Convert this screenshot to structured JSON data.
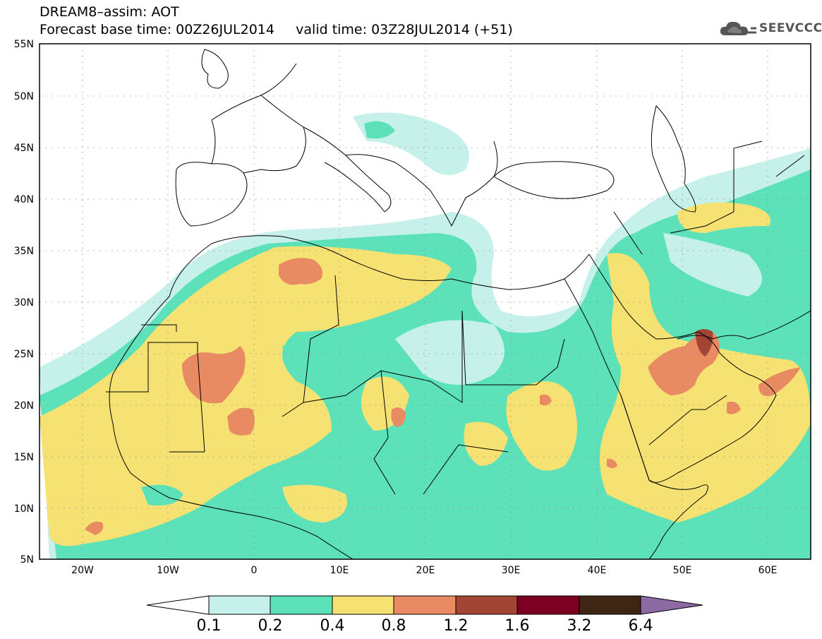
{
  "title": {
    "line1": "DREAM8–assim: AOT",
    "line2": "Forecast base time: 00Z26JUL2014     valid time: 03Z28JUL2014 (+51)"
  },
  "logo": {
    "text": "SEEVCCC",
    "icon": "cloud-icon"
  },
  "map": {
    "lon_range": [
      -25,
      65
    ],
    "lat_range": [
      5,
      55
    ],
    "grid": "dotted",
    "y_ticks": [
      {
        "value": 55,
        "label": "55N"
      },
      {
        "value": 50,
        "label": "50N"
      },
      {
        "value": 45,
        "label": "45N"
      },
      {
        "value": 40,
        "label": "40N"
      },
      {
        "value": 35,
        "label": "35N"
      },
      {
        "value": 30,
        "label": "30N"
      },
      {
        "value": 25,
        "label": "25N"
      },
      {
        "value": 20,
        "label": "20N"
      },
      {
        "value": 15,
        "label": "15N"
      },
      {
        "value": 10,
        "label": "10N"
      },
      {
        "value": 5,
        "label": "5N"
      }
    ],
    "x_ticks": [
      {
        "value": -20,
        "label": "20W"
      },
      {
        "value": -10,
        "label": "10W"
      },
      {
        "value": 0,
        "label": "0"
      },
      {
        "value": 10,
        "label": "10E"
      },
      {
        "value": 20,
        "label": "20E"
      },
      {
        "value": 30,
        "label": "30E"
      },
      {
        "value": 40,
        "label": "40E"
      },
      {
        "value": 50,
        "label": "50E"
      },
      {
        "value": 60,
        "label": "60E"
      }
    ]
  },
  "colorbar": {
    "labels": [
      "0.1",
      "0.2",
      "0.4",
      "0.8",
      "1.2",
      "1.6",
      "3.2",
      "6.4"
    ],
    "colors": [
      "#ffffff",
      "#c6f1eb",
      "#5ce1b9",
      "#f6e273",
      "#e88a62",
      "#a24535",
      "#7c0021",
      "#3d2614",
      "#8d6aa4"
    ]
  }
}
